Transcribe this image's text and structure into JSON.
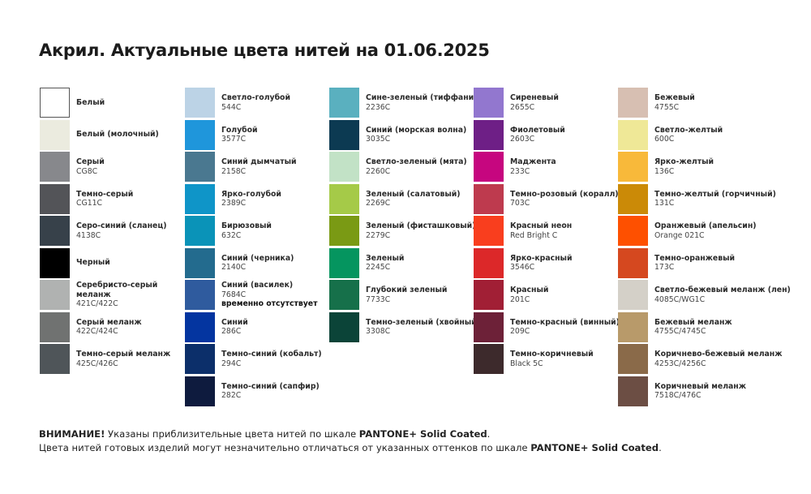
{
  "title": "Акрил. Актуальные цвета нитей на 01.06.2025",
  "columns": [
    [
      {
        "name": "Белый",
        "code": "",
        "color": "#ffffff",
        "border": true
      },
      {
        "name": "Белый (молочный)",
        "code": "",
        "color": "#ebebdf"
      },
      {
        "name": "Серый",
        "code": "CG8C",
        "color": "#87888c"
      },
      {
        "name": "Темно-серый",
        "code": "CG11C",
        "color": "#535458"
      },
      {
        "name": "Серо-синий (сланец)",
        "code": "4138C",
        "color": "#37414a"
      },
      {
        "name": "Черный",
        "code": "",
        "color": "#000000"
      },
      {
        "name": "Серебристо-серый меланж",
        "code": "421C/422C",
        "color": "#b0b2b1"
      },
      {
        "name": "Серый меланж",
        "code": "422C/424C",
        "color": "#707271"
      },
      {
        "name": "Темно-серый меланж",
        "code": "425C/426C",
        "color": "#4f5559"
      }
    ],
    [
      {
        "name": "Светло-голубой",
        "code": "544C",
        "color": "#bcd3e6"
      },
      {
        "name": "Голубой",
        "code": "3577C",
        "color": "#1f96db"
      },
      {
        "name": "Синий дымчатый",
        "code": "2158C",
        "color": "#4a7890"
      },
      {
        "name": "Ярко-голубой",
        "code": "2389C",
        "color": "#0f95c8"
      },
      {
        "name": "Бирюзовый",
        "code": "632C",
        "color": "#0a93b8"
      },
      {
        "name": "Синий (черника)",
        "code": "2140C",
        "color": "#236b8e"
      },
      {
        "name": "Синий (василек)",
        "code": "7684C",
        "note": "временно отсутствует",
        "color": "#2f5b9e"
      },
      {
        "name": "Синий",
        "code": "286C",
        "color": "#0435a0"
      },
      {
        "name": "Темно-синий (кобальт)",
        "code": "294C",
        "color": "#0c2f6a"
      },
      {
        "name": "Темно-синий (сапфир)",
        "code": "282C",
        "color": "#0e1b3e"
      }
    ],
    [
      {
        "name": "Сине-зеленый (тиффани)",
        "code": "2236C",
        "color": "#5ab0bf"
      },
      {
        "name": "Синий (морская волна)",
        "code": "3035C",
        "color": "#0c3a52"
      },
      {
        "name": "Светло-зеленый (мята)",
        "code": "2260C",
        "color": "#c2e2c6"
      },
      {
        "name": "Зеленый (салатовый)",
        "code": "2269C",
        "color": "#a5ca48"
      },
      {
        "name": "Зеленый (фисташковый)",
        "code": "2279C",
        "color": "#7a9a14"
      },
      {
        "name": "Зеленый",
        "code": "2245C",
        "color": "#05955f"
      },
      {
        "name": "Глубокий зеленый",
        "code": "7733C",
        "color": "#16704a"
      },
      {
        "name": "Темно-зеленый (хвойный)",
        "code": "3308C",
        "color": "#0b4438"
      }
    ],
    [
      {
        "name": "Сиреневый",
        "code": "2655C",
        "color": "#9277cf"
      },
      {
        "name": "Фиолетовый",
        "code": "2603C",
        "color": "#6e1f86"
      },
      {
        "name": "Маджента",
        "code": "233C",
        "color": "#c6067f"
      },
      {
        "name": "Темно-розовый (коралл)",
        "code": "703C",
        "color": "#be3a4e"
      },
      {
        "name": "Красный неон",
        "code": "Red Bright C",
        "color": "#f93e1e"
      },
      {
        "name": "Ярко-красный",
        "code": "3546C",
        "color": "#dc2829"
      },
      {
        "name": "Красный",
        "code": "201C",
        "color": "#a11f35"
      },
      {
        "name": "Темно-красный (винный)",
        "code": "209C",
        "color": "#6d2138"
      },
      {
        "name": "Темно-коричневый",
        "code": "Black 5C",
        "color": "#3d2a2c"
      }
    ],
    [
      {
        "name": "Бежевый",
        "code": "4755C",
        "color": "#d7bfb2"
      },
      {
        "name": "Светло-желтый",
        "code": "600C",
        "color": "#efe897"
      },
      {
        "name": "Ярко-желтый",
        "code": "136C",
        "color": "#f8b93a"
      },
      {
        "name": "Темно-желтый (горчичный)",
        "code": "131C",
        "color": "#cb8a07"
      },
      {
        "name": "Оранжевый (апельсин)",
        "code": "Orange 021C",
        "color": "#fe5000"
      },
      {
        "name": "Темно-оранжевый",
        "code": "173C",
        "color": "#d5481f"
      },
      {
        "name": "Светло-бежевый меланж (лен)",
        "code": "4085C/WG1C",
        "color": "#d4d0c8"
      },
      {
        "name": "Бежевый меланж",
        "code": "4755C/4745C",
        "color": "#b89a6a"
      },
      {
        "name": "Коричнево-бежевый меланж",
        "code": "4253C/4256C",
        "color": "#8a6a49"
      },
      {
        "name": "Коричневый меланж",
        "code": "7518C/476C",
        "color": "#6c4e44"
      }
    ]
  ],
  "notice": {
    "warning_label": "ВНИМАНИЕ!",
    "line1": " Указаны приблизительные цвета нитей по шкале ",
    "pantone": "PANTONE+ Solid Coated",
    "line1_end": ".",
    "line2": "Цвета нитей готовых изделий могут незначительно отличаться от указанных оттенков по шкале ",
    "line2_end": "."
  }
}
